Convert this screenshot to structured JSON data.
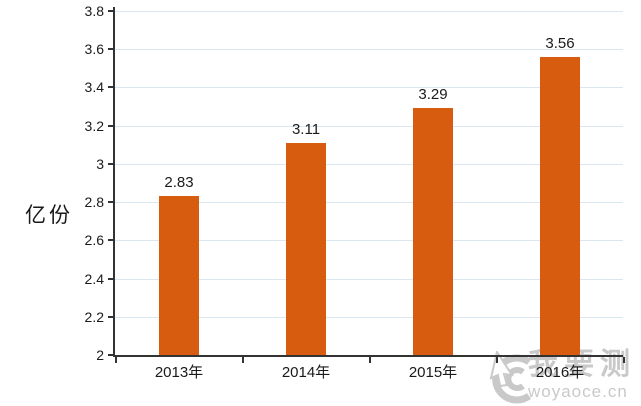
{
  "chart_data": {
    "type": "bar",
    "title": "",
    "categories": [
      "2013年",
      "2014年",
      "2015年",
      "2016年"
    ],
    "values": [
      2.83,
      3.11,
      3.29,
      3.56
    ],
    "value_labels": [
      "2.83",
      "3.11",
      "3.29",
      "3.56"
    ],
    "xlabel": "",
    "ylabel": "亿份",
    "ylim": [
      2,
      3.8
    ],
    "ytick_step": 0.2,
    "ytick_labels": [
      "2",
      "2.2",
      "2.4",
      "2.6",
      "2.8",
      "3",
      "3.2",
      "3.4",
      "3.6",
      "3.8"
    ],
    "grid": true,
    "legend_position": "none",
    "bar_color": "#d85c10",
    "gridline_color": "#d9e8f0",
    "axis_color": "#333333",
    "text_color": "#1a1a1a"
  },
  "watermark": {
    "brand": "我要测",
    "domain": "woyaoce.cn",
    "color": "#c9c9c9"
  }
}
